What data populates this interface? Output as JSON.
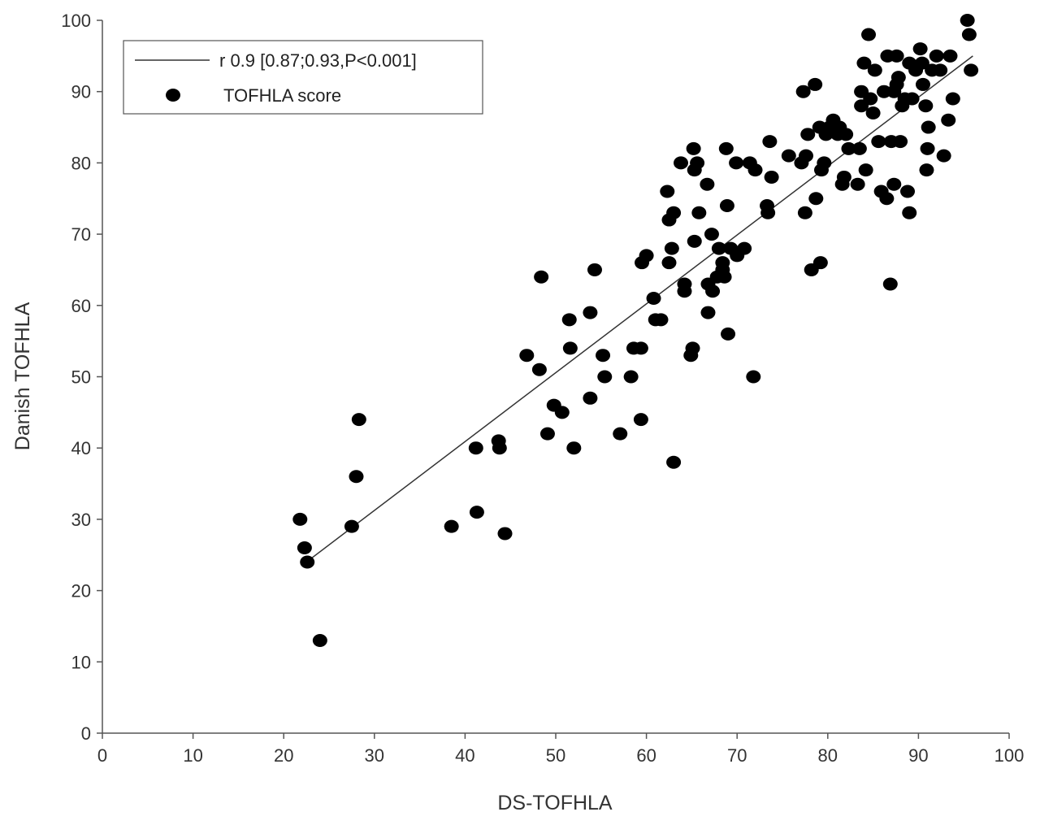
{
  "chart_data": {
    "type": "scatter",
    "title": "",
    "xlabel": "DS-TOFHLA",
    "ylabel": "Danish TOFHLA",
    "xlim": [
      0,
      100
    ],
    "ylim": [
      0,
      100
    ],
    "xticks": [
      0,
      10,
      20,
      30,
      40,
      50,
      60,
      70,
      80,
      90,
      100
    ],
    "yticks": [
      0,
      10,
      20,
      30,
      40,
      50,
      60,
      70,
      80,
      90,
      100
    ],
    "grid": false,
    "legend_position": "top-left",
    "legend": {
      "line_label": "r 0.9 [0.87;0.93,P<0.001]",
      "marker_label": "TOFHLA score"
    },
    "fit_line": {
      "x": [
        22.5,
        96
      ],
      "y": [
        24,
        95
      ],
      "color": "#333333"
    },
    "series": [
      {
        "name": "TOFHLA score",
        "color": "#000000",
        "points": [
          [
            21.8,
            30
          ],
          [
            22.3,
            26
          ],
          [
            22.6,
            24
          ],
          [
            24,
            13
          ],
          [
            27.5,
            29
          ],
          [
            28,
            36
          ],
          [
            28.3,
            44
          ],
          [
            38.5,
            29
          ],
          [
            41.2,
            40
          ],
          [
            41.3,
            31
          ],
          [
            43.7,
            41
          ],
          [
            43.8,
            40
          ],
          [
            44.4,
            28
          ],
          [
            46.8,
            53
          ],
          [
            48.2,
            51
          ],
          [
            48.4,
            64
          ],
          [
            49.1,
            42
          ],
          [
            49.8,
            46
          ],
          [
            50.7,
            45
          ],
          [
            51.5,
            58
          ],
          [
            51.6,
            54
          ],
          [
            52,
            40
          ],
          [
            53.8,
            59
          ],
          [
            53.8,
            47
          ],
          [
            54.3,
            65
          ],
          [
            55.2,
            53
          ],
          [
            55.4,
            50
          ],
          [
            57.1,
            42
          ],
          [
            58.3,
            50
          ],
          [
            58.6,
            54
          ],
          [
            59.4,
            54
          ],
          [
            59.4,
            44
          ],
          [
            59.5,
            66
          ],
          [
            60,
            67
          ],
          [
            60.8,
            61
          ],
          [
            61,
            58
          ],
          [
            61.6,
            58
          ],
          [
            62.3,
            76
          ],
          [
            62.5,
            72
          ],
          [
            62.5,
            66
          ],
          [
            62.8,
            68
          ],
          [
            63,
            73
          ],
          [
            63,
            38
          ],
          [
            63.8,
            80
          ],
          [
            64.2,
            63
          ],
          [
            64.2,
            62
          ],
          [
            64.9,
            53
          ],
          [
            65.1,
            54
          ],
          [
            65.2,
            82
          ],
          [
            65.3,
            79
          ],
          [
            65.3,
            69
          ],
          [
            65.6,
            80
          ],
          [
            65.8,
            73
          ],
          [
            66.7,
            77
          ],
          [
            66.8,
            63
          ],
          [
            66.8,
            59
          ],
          [
            67.2,
            70
          ],
          [
            67.3,
            62
          ],
          [
            67.8,
            64
          ],
          [
            68,
            68
          ],
          [
            68.4,
            66
          ],
          [
            68.4,
            65
          ],
          [
            68.6,
            64
          ],
          [
            68.8,
            82
          ],
          [
            68.9,
            74
          ],
          [
            69,
            56
          ],
          [
            69.3,
            68
          ],
          [
            69.9,
            80
          ],
          [
            70,
            67
          ],
          [
            70.8,
            68
          ],
          [
            71.4,
            80
          ],
          [
            71.8,
            50
          ],
          [
            72,
            79
          ],
          [
            73.3,
            74
          ],
          [
            73.4,
            73
          ],
          [
            73.6,
            83
          ],
          [
            73.8,
            78
          ],
          [
            75.7,
            81
          ],
          [
            77.1,
            80
          ],
          [
            77.3,
            90
          ],
          [
            77.5,
            73
          ],
          [
            77.6,
            81
          ],
          [
            77.8,
            84
          ],
          [
            78.2,
            65
          ],
          [
            78.6,
            91
          ],
          [
            78.7,
            75
          ],
          [
            79.1,
            85
          ],
          [
            79.2,
            66
          ],
          [
            79.3,
            79
          ],
          [
            79.6,
            80
          ],
          [
            79.8,
            84
          ],
          [
            80.2,
            85
          ],
          [
            80.6,
            86
          ],
          [
            81.1,
            84
          ],
          [
            81.3,
            85
          ],
          [
            81.6,
            77
          ],
          [
            81.8,
            78
          ],
          [
            82,
            84
          ],
          [
            82.3,
            82
          ],
          [
            83.3,
            77
          ],
          [
            83.5,
            82
          ],
          [
            83.7,
            88
          ],
          [
            83.7,
            90
          ],
          [
            84,
            94
          ],
          [
            84.2,
            79
          ],
          [
            84.5,
            98
          ],
          [
            84.7,
            89
          ],
          [
            85,
            87
          ],
          [
            85.2,
            93
          ],
          [
            85.6,
            83
          ],
          [
            85.9,
            76
          ],
          [
            86.2,
            90
          ],
          [
            86.5,
            75
          ],
          [
            86.6,
            95
          ],
          [
            86.9,
            63
          ],
          [
            87,
            83
          ],
          [
            87.3,
            77
          ],
          [
            87.3,
            90
          ],
          [
            87.6,
            95
          ],
          [
            87.6,
            91
          ],
          [
            87.8,
            92
          ],
          [
            88,
            83
          ],
          [
            88.2,
            88
          ],
          [
            88.5,
            89
          ],
          [
            88.8,
            76
          ],
          [
            89,
            73
          ],
          [
            89,
            94
          ],
          [
            89.3,
            89
          ],
          [
            89.7,
            93
          ],
          [
            90.2,
            96
          ],
          [
            90.4,
            94
          ],
          [
            90.5,
            91
          ],
          [
            90.8,
            88
          ],
          [
            90.9,
            79
          ],
          [
            91,
            82
          ],
          [
            91.1,
            85
          ],
          [
            91.5,
            93
          ],
          [
            92,
            95
          ],
          [
            92.4,
            93
          ],
          [
            92.8,
            81
          ],
          [
            93.3,
            86
          ],
          [
            93.5,
            95
          ],
          [
            93.8,
            89
          ],
          [
            95.4,
            100
          ],
          [
            95.6,
            98
          ],
          [
            95.8,
            93
          ]
        ]
      }
    ]
  }
}
